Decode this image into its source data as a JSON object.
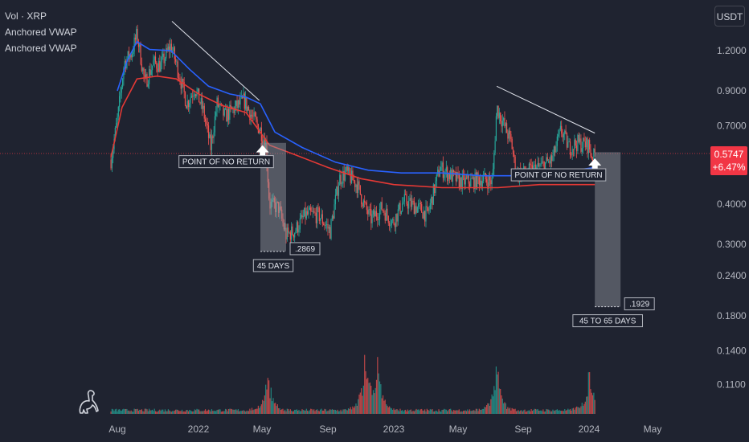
{
  "legend": {
    "line1": "Vol · XRP",
    "line2": "Anchored VWAP",
    "line3": "Anchored VWAP"
  },
  "currency_label": "USDT",
  "colors": {
    "background": "#1f2330",
    "up": "#26a69a",
    "down": "#ef5350",
    "vwap_blue": "#2962ff",
    "vwap_red": "#e53935",
    "price_badge": "#f23645",
    "trendline": "#e0e3eb"
  },
  "price_badge": {
    "price": "0.5747",
    "change": "+6.47%"
  },
  "chart_data": {
    "type": "candlestick",
    "y_axis": {
      "scale": "log",
      "ticks": [
        "1.2000",
        "0.9000",
        "0.7000",
        "0.4000",
        "0.3000",
        "0.2400",
        "0.1800",
        "0.1400",
        "0.1100"
      ],
      "tick_values": [
        1.2,
        0.9,
        0.7,
        0.4,
        0.3,
        0.24,
        0.18,
        0.14,
        0.11
      ]
    },
    "x_axis": {
      "ticks": [
        "Aug",
        "2022",
        "May",
        "Sep",
        "2023",
        "May",
        "Sep",
        "2024",
        "May"
      ],
      "tick_dates": [
        "2021-08-01",
        "2022-01-01",
        "2022-05-01",
        "2022-09-01",
        "2023-01-01",
        "2023-05-01",
        "2023-09-01",
        "2024-01-01",
        "2024-05-01"
      ]
    },
    "last_price": 0.5747,
    "price_path": [
      [
        "2021-07-20",
        0.55
      ],
      [
        "2021-08-02",
        0.75
      ],
      [
        "2021-08-14",
        1.1
      ],
      [
        "2021-08-28",
        1.18
      ],
      [
        "2021-09-07",
        1.35
      ],
      [
        "2021-09-22",
        0.95
      ],
      [
        "2021-10-08",
        1.1
      ],
      [
        "2021-10-22",
        1.08
      ],
      [
        "2021-11-10",
        1.25
      ],
      [
        "2021-11-25",
        1.02
      ],
      [
        "2021-12-10",
        0.82
      ],
      [
        "2021-12-25",
        0.92
      ],
      [
        "2022-01-10",
        0.78
      ],
      [
        "2022-01-24",
        0.6
      ],
      [
        "2022-02-05",
        0.82
      ],
      [
        "2022-02-20",
        0.75
      ],
      [
        "2022-03-05",
        0.78
      ],
      [
        "2022-03-28",
        0.84
      ],
      [
        "2022-04-12",
        0.75
      ],
      [
        "2022-04-28",
        0.68
      ],
      [
        "2022-05-08",
        0.62
      ],
      [
        "2022-05-15",
        0.4
      ],
      [
        "2022-06-01",
        0.39
      ],
      [
        "2022-06-15",
        0.32
      ],
      [
        "2022-07-01",
        0.33
      ],
      [
        "2022-07-20",
        0.37
      ],
      [
        "2022-08-15",
        0.37
      ],
      [
        "2022-09-05",
        0.33
      ],
      [
        "2022-09-22",
        0.48
      ],
      [
        "2022-10-05",
        0.5
      ],
      [
        "2022-10-25",
        0.46
      ],
      [
        "2022-11-09",
        0.39
      ],
      [
        "2022-11-20",
        0.36
      ],
      [
        "2022-12-10",
        0.39
      ],
      [
        "2022-12-30",
        0.35
      ],
      [
        "2023-01-20",
        0.41
      ],
      [
        "2023-02-15",
        0.39
      ],
      [
        "2023-03-05",
        0.37
      ],
      [
        "2023-03-28",
        0.52
      ],
      [
        "2023-04-10",
        0.5
      ],
      [
        "2023-05-05",
        0.47
      ],
      [
        "2023-05-25",
        0.47
      ],
      [
        "2023-06-15",
        0.48
      ],
      [
        "2023-07-05",
        0.47
      ],
      [
        "2023-07-13",
        0.8
      ],
      [
        "2023-07-20",
        0.75
      ],
      [
        "2023-08-10",
        0.62
      ],
      [
        "2023-08-18",
        0.5
      ],
      [
        "2023-09-05",
        0.5
      ],
      [
        "2023-10-01",
        0.52
      ],
      [
        "2023-10-25",
        0.55
      ],
      [
        "2023-11-10",
        0.68
      ],
      [
        "2023-11-25",
        0.6
      ],
      [
        "2023-12-10",
        0.62
      ],
      [
        "2023-12-31",
        0.61
      ],
      [
        "2024-01-08",
        0.55
      ],
      [
        "2024-01-12",
        0.5747
      ]
    ],
    "vwap_blue": [
      [
        "2021-08-01",
        0.9
      ],
      [
        "2021-08-20",
        1.12
      ],
      [
        "2021-09-07",
        1.28
      ],
      [
        "2021-10-01",
        1.21
      ],
      [
        "2021-11-10",
        1.2
      ],
      [
        "2021-12-15",
        1.05
      ],
      [
        "2022-01-20",
        0.93
      ],
      [
        "2022-03-01",
        0.88
      ],
      [
        "2022-04-01",
        0.86
      ],
      [
        "2022-04-28",
        0.82
      ],
      [
        "2022-05-25",
        0.67
      ],
      [
        "2022-07-15",
        0.6
      ],
      [
        "2022-09-15",
        0.54
      ],
      [
        "2022-11-15",
        0.51
      ],
      [
        "2023-01-15",
        0.5
      ],
      [
        "2023-04-01",
        0.5
      ],
      [
        "2023-06-15",
        0.49
      ],
      [
        "2023-09-01",
        0.49
      ],
      [
        "2023-11-01",
        0.5
      ],
      [
        "2024-01-12",
        0.52
      ]
    ],
    "vwap_red": [
      [
        "2021-07-20",
        0.56
      ],
      [
        "2021-08-10",
        0.8
      ],
      [
        "2021-09-07",
        0.98
      ],
      [
        "2021-10-15",
        1.0
      ],
      [
        "2021-11-20",
        0.98
      ],
      [
        "2022-01-01",
        0.88
      ],
      [
        "2022-02-15",
        0.81
      ],
      [
        "2022-04-01",
        0.77
      ],
      [
        "2022-05-15",
        0.61
      ],
      [
        "2022-07-01",
        0.57
      ],
      [
        "2022-09-01",
        0.52
      ],
      [
        "2022-11-01",
        0.48
      ],
      [
        "2023-01-01",
        0.46
      ],
      [
        "2023-04-01",
        0.45
      ],
      [
        "2023-07-15",
        0.45
      ],
      [
        "2023-10-01",
        0.46
      ],
      [
        "2024-01-12",
        0.46
      ]
    ],
    "trendlines": [
      {
        "from": [
          "2021-11-12",
          1.48
        ],
        "to": [
          "2022-04-26",
          0.84
        ]
      },
      {
        "from": [
          "2023-07-13",
          0.93
        ],
        "to": [
          "2024-01-12",
          0.665
        ]
      }
    ],
    "boxes": [
      {
        "from": [
          "2022-04-28",
          0.62
        ],
        "to": [
          "2022-06-15",
          0.285
        ],
        "days_label": "45 DAYS",
        "price_label": ".2869"
      },
      {
        "from": [
          "2024-01-12",
          0.58
        ],
        "to": [
          "2024-03-01",
          0.192
        ],
        "days_label": "45 TO 65 DAYS",
        "price_label": ".1929"
      }
    ],
    "annotations": [
      {
        "text": "POINT OF NO RETURN",
        "arrow_at": [
          "2022-05-02",
          0.61
        ]
      },
      {
        "text": "POINT OF NO RETURN",
        "arrow_at": [
          "2024-01-12",
          0.555
        ]
      }
    ],
    "volume": {
      "baseline_fraction": 0.02,
      "spikes": [
        [
          "2022-05-12",
          0.45
        ],
        [
          "2022-11-09",
          0.6
        ],
        [
          "2022-12-01",
          0.6
        ],
        [
          "2023-07-13",
          0.55
        ],
        [
          "2024-01-03",
          0.6
        ]
      ]
    }
  }
}
